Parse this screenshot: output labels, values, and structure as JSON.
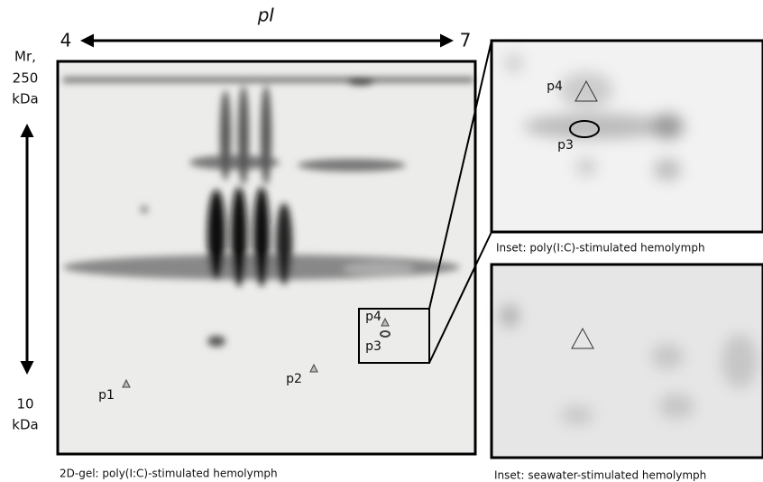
{
  "axis_pi": {
    "label": "pI",
    "start": "4",
    "end": "7"
  },
  "axis_mr": {
    "label": "Mr,",
    "top": "250",
    "top_unit": "kDa",
    "bottom": "10",
    "bottom_unit": "kDa"
  },
  "gel": {
    "caption": "2D-gel: poly(I:C)-stimulated hemolymph",
    "spots": [
      "p1",
      "p2",
      "p3",
      "p4"
    ]
  },
  "insets": [
    {
      "caption": "Inset: poly(I:C)-stimulated hemolymph",
      "spots": [
        "p4",
        "p3"
      ]
    },
    {
      "caption": "Inset: seawater-stimulated hemolymph"
    }
  ]
}
